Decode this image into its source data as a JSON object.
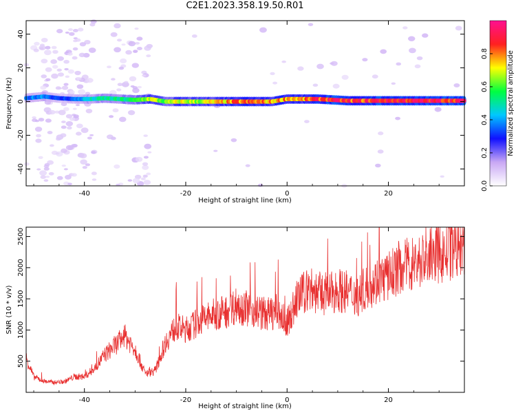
{
  "title": "C2E1.2023.358.19.50.R01",
  "chart_data": [
    {
      "type": "heatmap",
      "xlabel": "Height of straight line (km)",
      "ylabel": "Frequency (Hz)",
      "xlim": [
        -51.5,
        35
      ],
      "ylim": [
        -50,
        48
      ],
      "xticks": [
        -40,
        -20,
        0,
        20
      ],
      "yticks": [
        -40,
        -20,
        0,
        20,
        40
      ],
      "colorbar": {
        "label": "Normalized spectral amplitude",
        "range": [
          0,
          1
        ],
        "ticks": [
          "0.0",
          "0.2",
          "0.4",
          "0.6",
          "0.8"
        ],
        "colors": [
          "#ffffff",
          "#c9a8f4",
          "#1010ff",
          "#00c8ff",
          "#00ff40",
          "#ffff00",
          "#ff2020",
          "#ff1090"
        ]
      },
      "ridge": {
        "x": [
          -51.5,
          -48,
          -45,
          -42,
          -39,
          -36,
          -33,
          -30,
          -27,
          -24,
          -21,
          -18,
          -15,
          -12,
          -9,
          -6,
          -3,
          0,
          3,
          6,
          9,
          12,
          15,
          18,
          21,
          24,
          27,
          30,
          35
        ],
        "frequency": [
          2,
          3,
          2,
          1.5,
          1.5,
          2,
          1.5,
          1,
          1.5,
          0,
          0,
          0,
          0,
          0,
          0,
          0,
          0,
          1.5,
          1.5,
          1.5,
          1,
          0.5,
          0.5,
          0.5,
          0.5,
          0.5,
          0.5,
          0.5,
          0.5
        ],
        "amplitude": [
          0.35,
          0.4,
          0.3,
          0.35,
          0.45,
          0.5,
          0.5,
          0.55,
          0.7,
          0.6,
          0.7,
          0.65,
          0.7,
          0.75,
          0.8,
          0.8,
          0.75,
          0.8,
          0.75,
          0.85,
          0.9,
          0.85,
          0.85,
          0.9,
          0.9,
          0.9,
          0.9,
          0.9,
          0.9
        ]
      }
    },
    {
      "type": "line",
      "xlabel": "Height of straight line (km)",
      "ylabel": "SNR (10 * v/v)",
      "xlim": [
        -51.5,
        35
      ],
      "ylim": [
        0,
        2650
      ],
      "xticks": [
        -40,
        -20,
        0,
        20
      ],
      "yticks": [
        500,
        1000,
        1500,
        2000,
        2500
      ],
      "color": "#e83030",
      "series": [
        {
          "x": [
            -51.5,
            -50,
            -48,
            -46,
            -44,
            -42,
            -40,
            -38,
            -36,
            -34,
            -32,
            -30,
            -28,
            -26,
            -24,
            -22,
            -20,
            -18,
            -16,
            -14,
            -12,
            -10,
            -8,
            -6,
            -4,
            -2,
            0,
            2,
            4,
            6,
            8,
            10,
            12,
            14,
            16,
            18,
            20,
            22,
            24,
            26,
            28,
            30,
            32,
            34,
            35
          ],
          "values": [
            550,
            250,
            180,
            160,
            170,
            250,
            250,
            380,
            600,
            750,
            900,
            700,
            300,
            350,
            800,
            1050,
            1000,
            1100,
            1200,
            1250,
            1300,
            1400,
            1350,
            1300,
            1250,
            1300,
            1100,
            1500,
            1650,
            1600,
            1550,
            1650,
            1600,
            1550,
            1700,
            1800,
            1850,
            2000,
            2050,
            2100,
            2150,
            2200,
            2250,
            2300,
            2300
          ]
        }
      ]
    }
  ]
}
